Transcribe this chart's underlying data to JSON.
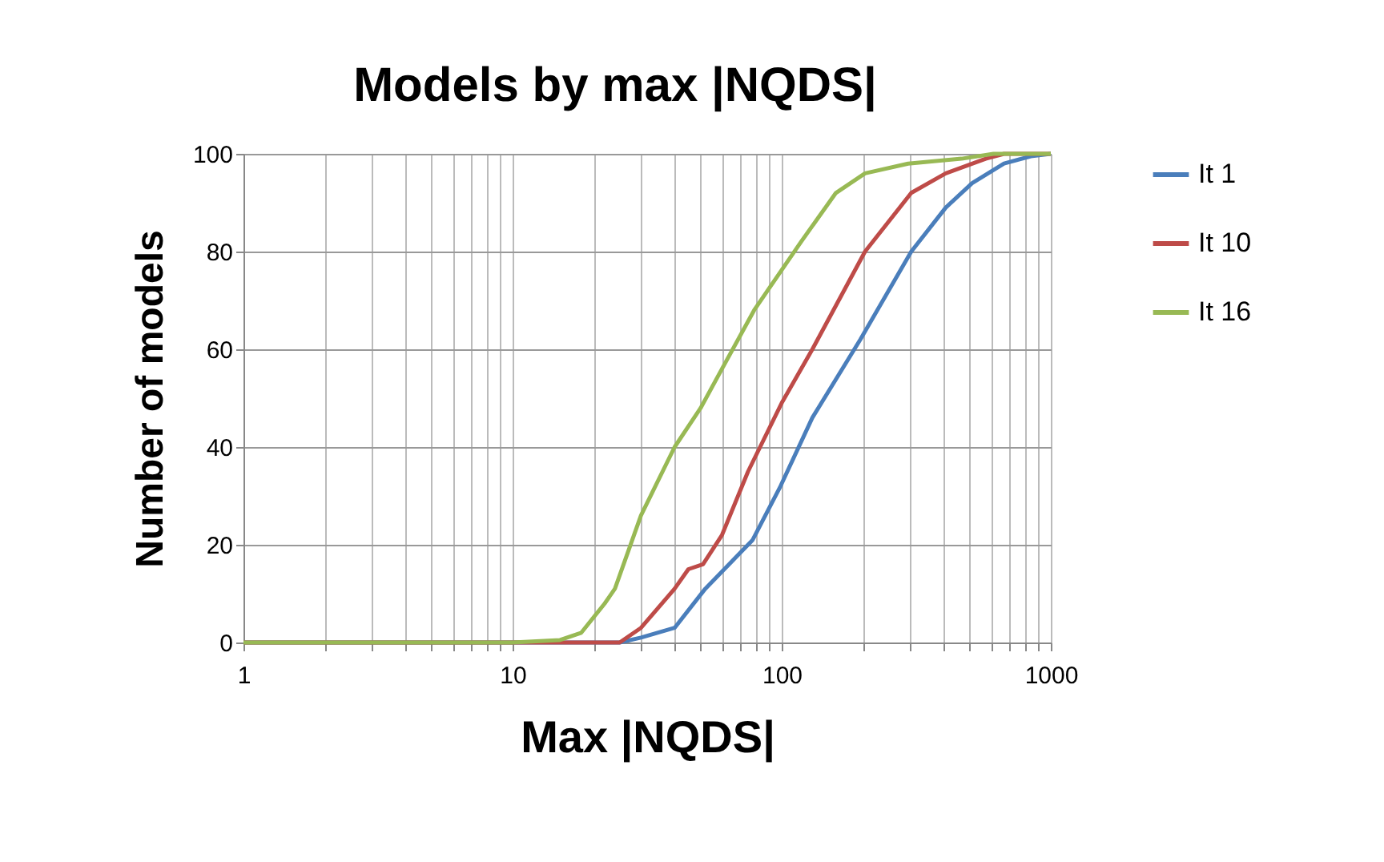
{
  "chart_data": {
    "type": "line",
    "title": "Models by max |NQDS|",
    "xlabel": "Max |NQDS|",
    "ylabel": "Number of models",
    "log": "x",
    "grid": true,
    "legend": "right",
    "marker": "none",
    "line_style": "solid",
    "xlim": [
      1,
      1000
    ],
    "ylim": [
      0,
      100
    ],
    "xticks": [
      1,
      {
        "value": 2,
        "label": null
      },
      {
        "value": 3,
        "label": null
      },
      {
        "value": 4,
        "label": null
      },
      {
        "value": 5,
        "label": null
      },
      {
        "value": 6,
        "label": null
      },
      {
        "value": 7,
        "label": null
      },
      {
        "value": 8,
        "label": null
      },
      {
        "value": 9,
        "label": null
      },
      10,
      {
        "value": 20,
        "label": null
      },
      {
        "value": 30,
        "label": null
      },
      {
        "value": 40,
        "label": null
      },
      {
        "value": 50,
        "label": null
      },
      {
        "value": 60,
        "label": null
      },
      {
        "value": 70,
        "label": null
      },
      {
        "value": 80,
        "label": null
      },
      {
        "value": 90,
        "label": null
      },
      100,
      {
        "value": 200,
        "label": null
      },
      {
        "value": 300,
        "label": null
      },
      {
        "value": 400,
        "label": null
      },
      {
        "value": 500,
        "label": null
      },
      {
        "value": 600,
        "label": null
      },
      {
        "value": 700,
        "label": null
      },
      {
        "value": 800,
        "label": null
      },
      {
        "value": 900,
        "label": null
      },
      1000
    ],
    "yticks": [
      0,
      20,
      40,
      60,
      80,
      100
    ],
    "series": [
      {
        "name": "It 1",
        "color": "#4a7ebb",
        "x": [
          1,
          25,
          30,
          40,
          52,
          78,
          99,
          130,
          196,
          303,
          407,
          510,
          670,
          843,
          1000
        ],
        "values": [
          0,
          0,
          1,
          3,
          11,
          21,
          32,
          46,
          62,
          80,
          89,
          94,
          98,
          99.5,
          100
        ]
      },
      {
        "name": "It 10",
        "color": "#be4b48",
        "x": [
          1,
          25,
          30,
          40,
          45,
          51,
          60,
          75,
          100,
          130,
          204,
          303,
          407,
          573,
          670,
          1000
        ],
        "values": [
          0,
          0,
          3,
          11,
          15,
          16,
          22,
          35,
          49,
          60,
          80,
          92,
          96,
          99,
          100,
          100
        ]
      },
      {
        "name": "It 16",
        "color": "#98b954",
        "x": [
          1,
          10,
          15,
          18,
          22,
          24,
          30,
          40,
          50,
          60,
          79,
          118,
          159,
          204,
          295,
          466,
          612,
          1000
        ],
        "values": [
          0,
          0,
          0.5,
          2,
          8,
          11,
          26,
          40,
          48,
          56,
          68,
          82,
          92,
          96,
          98,
          99,
          100,
          100
        ]
      }
    ]
  }
}
